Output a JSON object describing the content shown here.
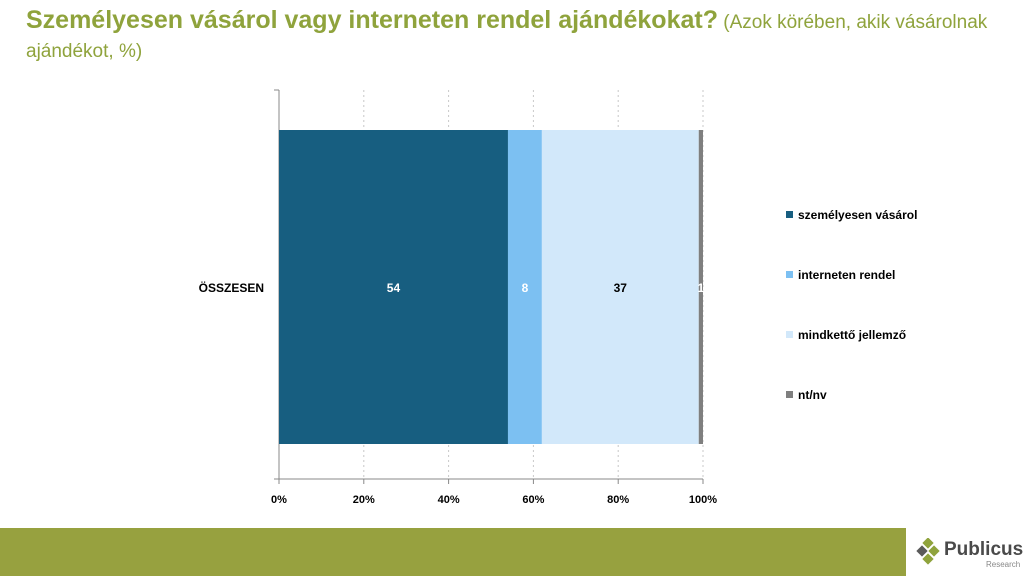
{
  "title": {
    "main": "Személyesen vásárol vagy interneten rendel ajándékokat?",
    "sub": " (Azok körében, akik vásárolnak ajándékot, %)"
  },
  "chart_data": {
    "type": "bar",
    "orientation": "horizontal",
    "stacked": true,
    "categories": [
      "ÖSSZESEN"
    ],
    "series": [
      {
        "name": "személyesen vásárol",
        "values": [
          54
        ],
        "color": "#175e80",
        "label_color": "#ffffff"
      },
      {
        "name": "interneten rendel",
        "values": [
          8
        ],
        "color": "#7cc0f2",
        "label_color": "#ffffff"
      },
      {
        "name": "mindkettő jellemző",
        "values": [
          37
        ],
        "color": "#d2e8fa",
        "label_color": "#000000"
      },
      {
        "name": "nt/nv",
        "values": [
          1
        ],
        "color": "#7f7f7f",
        "label_color": "#ffffff"
      }
    ],
    "xlim": [
      0,
      100
    ],
    "xticks": [
      "0%",
      "20%",
      "40%",
      "60%",
      "80%",
      "100%"
    ],
    "grid": "vertical dashed",
    "legend": "right"
  },
  "colors": {
    "accent": "#8fa33c",
    "footer": "#97a13f"
  },
  "brand": {
    "name": "Publicus",
    "tagline": "Research",
    "icon": "diamond-logo-icon"
  }
}
